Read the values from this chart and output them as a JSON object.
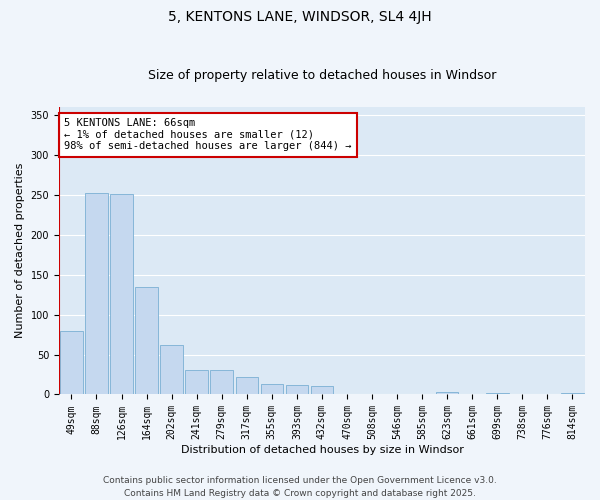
{
  "title": "5, KENTONS LANE, WINDSOR, SL4 4JH",
  "subtitle": "Size of property relative to detached houses in Windsor",
  "xlabel": "Distribution of detached houses by size in Windsor",
  "ylabel": "Number of detached properties",
  "bar_labels": [
    "49sqm",
    "88sqm",
    "126sqm",
    "164sqm",
    "202sqm",
    "241sqm",
    "279sqm",
    "317sqm",
    "355sqm",
    "393sqm",
    "432sqm",
    "470sqm",
    "508sqm",
    "546sqm",
    "585sqm",
    "623sqm",
    "661sqm",
    "699sqm",
    "738sqm",
    "776sqm",
    "814sqm"
  ],
  "bar_values": [
    79,
    252,
    251,
    134,
    62,
    30,
    30,
    22,
    13,
    12,
    11,
    1,
    0,
    0,
    0,
    3,
    0,
    2,
    0,
    0,
    2
  ],
  "bar_color": "#c5d8ef",
  "bar_edge_color": "#7aafd4",
  "plot_bg_color": "#dce9f5",
  "fig_bg_color": "#f0f5fb",
  "grid_color": "#ffffff",
  "vline_color": "#cc0000",
  "annotation_text": "5 KENTONS LANE: 66sqm\n← 1% of detached houses are smaller (12)\n98% of semi-detached houses are larger (844) →",
  "annotation_box_color": "#ffffff",
  "annotation_box_edge_color": "#cc0000",
  "ylim": [
    0,
    360
  ],
  "yticks": [
    0,
    50,
    100,
    150,
    200,
    250,
    300,
    350
  ],
  "footer1": "Contains HM Land Registry data © Crown copyright and database right 2025.",
  "footer2": "Contains public sector information licensed under the Open Government Licence v3.0.",
  "title_fontsize": 10,
  "subtitle_fontsize": 9,
  "axis_label_fontsize": 8,
  "tick_fontsize": 7,
  "annotation_fontsize": 7.5,
  "footer_fontsize": 6.5
}
